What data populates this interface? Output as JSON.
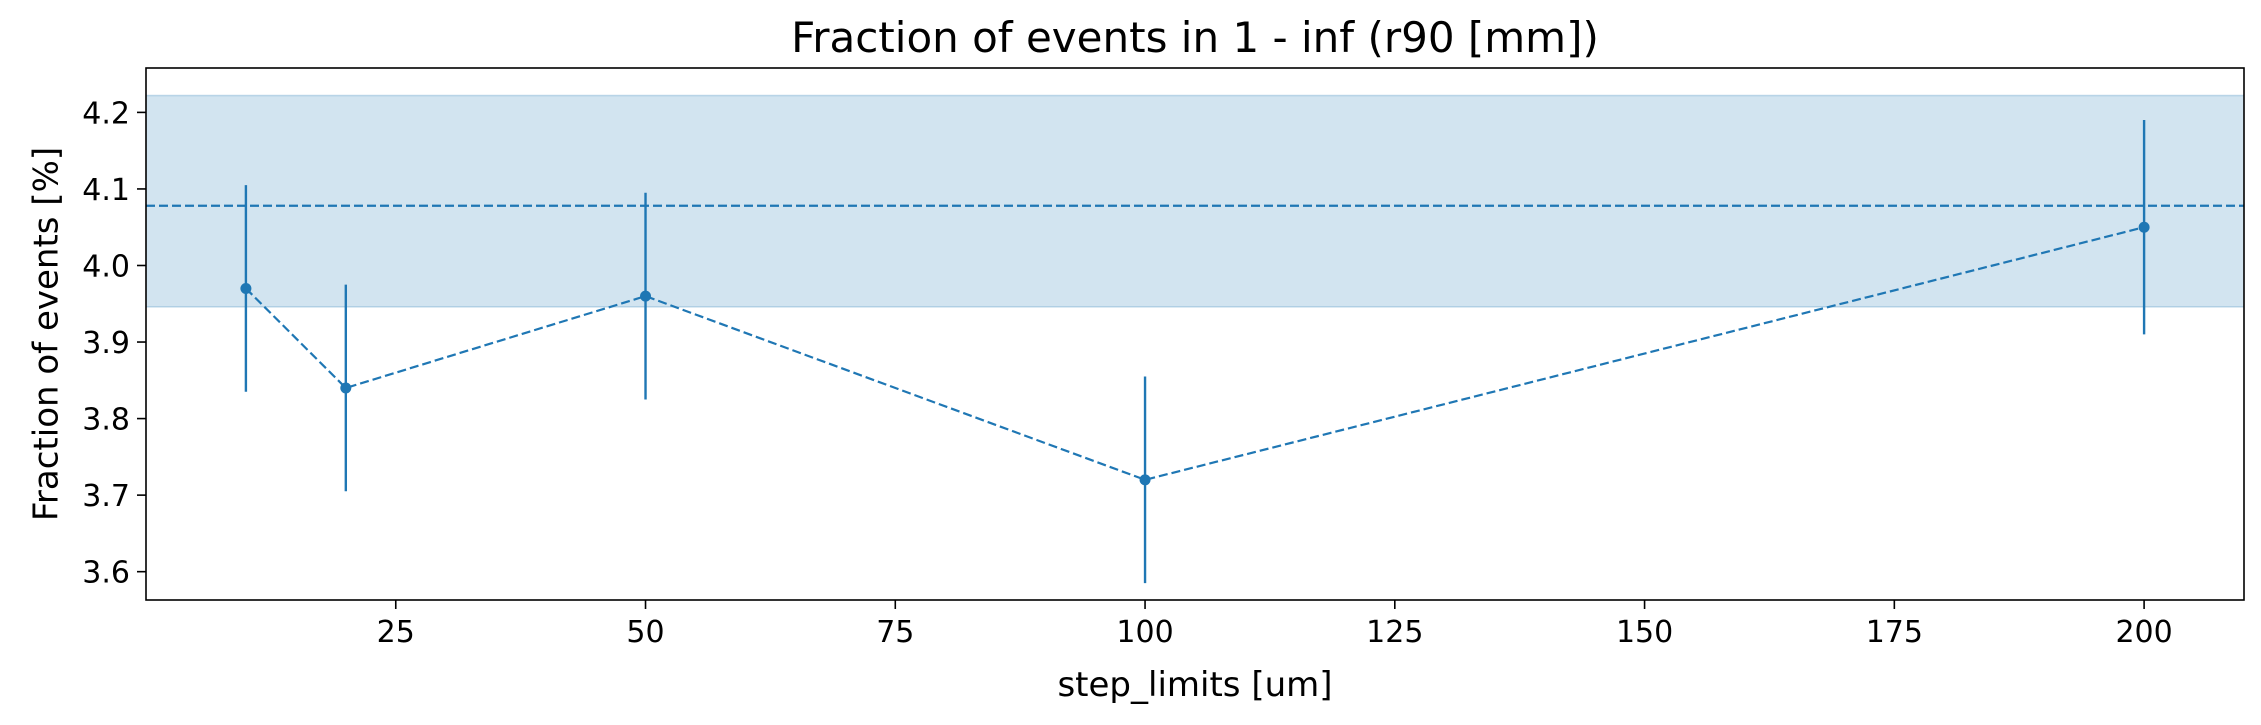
{
  "chart_data": {
    "type": "line",
    "title": "Fraction of events in 1 - inf (r90 [mm])",
    "xlabel": "step_limits [um]",
    "ylabel": "Fraction of events [%]",
    "xlim": [
      0,
      210
    ],
    "ylim": [
      3.563,
      4.258
    ],
    "xticks": [
      25,
      50,
      75,
      100,
      125,
      150,
      175,
      200
    ],
    "yticks": [
      3.6,
      3.7,
      3.8,
      3.9,
      4.0,
      4.1,
      4.2
    ],
    "xtick_labels": [
      "25",
      "50",
      "75",
      "100",
      "125",
      "150",
      "175",
      "200"
    ],
    "ytick_labels": [
      "3.6",
      "3.7",
      "3.8",
      "3.9",
      "4.0",
      "4.1",
      "4.2"
    ],
    "grid": false,
    "series": [
      {
        "x": [
          10,
          20,
          50,
          100,
          200
        ],
        "y": [
          3.97,
          3.84,
          3.96,
          3.72,
          4.05
        ],
        "yerr": [
          0.135,
          0.135,
          0.135,
          0.135,
          0.14
        ],
        "line_style": "dashed",
        "marker": "circle",
        "color": "#1f77b4"
      }
    ],
    "reference": {
      "value": 4.078,
      "band": [
        3.946,
        4.222
      ],
      "line_style": "dashed",
      "color": "#1f77b4",
      "band_color": "#1f77b4",
      "band_alpha": 0.2
    }
  }
}
